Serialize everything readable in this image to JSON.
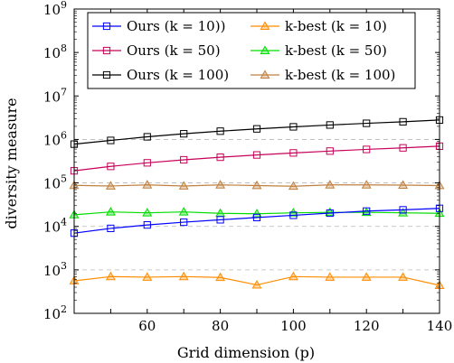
{
  "chart_data": {
    "type": "line",
    "title": "",
    "xlabel": "Grid dimension (p)",
    "ylabel": "diversity measure",
    "xlim": [
      40,
      140
    ],
    "ylim_log10": [
      2,
      9
    ],
    "yscale": "log",
    "xticks": [
      60,
      80,
      100,
      120,
      140
    ],
    "yticks_exponents": [
      2,
      3,
      4,
      5,
      6,
      7,
      8,
      9
    ],
    "ytick_base": "10",
    "dashed_gridlines_y": [
      1000,
      10000,
      100000,
      1000000
    ],
    "legend_position": "top-center",
    "x": [
      40,
      50,
      60,
      70,
      80,
      90,
      100,
      110,
      120,
      130,
      140
    ],
    "series": [
      {
        "name": "Ours (k = 10))",
        "color": "#0000ff",
        "marker": "square",
        "values": [
          7000,
          9000,
          10800,
          12500,
          14200,
          16000,
          18000,
          20200,
          22500,
          24000,
          26000
        ]
      },
      {
        "name": "Ours (k = 50)",
        "color": "#c8005a",
        "marker": "square",
        "values": [
          190000,
          240000,
          290000,
          340000,
          390000,
          440000,
          490000,
          540000,
          590000,
          640000,
          700000
        ]
      },
      {
        "name": "Ours (k = 100)",
        "color": "#000000",
        "marker": "square",
        "values": [
          780000,
          950000,
          1150000,
          1350000,
          1550000,
          1750000,
          1950000,
          2150000,
          2350000,
          2550000,
          2800000
        ]
      },
      {
        "name": "k-best (k = 10)",
        "color": "#ff8c00",
        "marker": "triangle",
        "values": [
          560,
          700,
          680,
          700,
          670,
          450,
          700,
          680,
          680,
          680,
          440
        ]
      },
      {
        "name": "k-best (k = 50)",
        "color": "#00dd00",
        "marker": "triangle",
        "values": [
          18500,
          21500,
          20500,
          21500,
          20000,
          19500,
          20500,
          21000,
          21000,
          20500,
          20000
        ]
      },
      {
        "name": "k-best (k = 100)",
        "color": "#c08040",
        "marker": "triangle",
        "values": [
          88000,
          85000,
          90000,
          85000,
          90000,
          87000,
          84000,
          90000,
          90000,
          89000,
          87000
        ]
      }
    ]
  }
}
